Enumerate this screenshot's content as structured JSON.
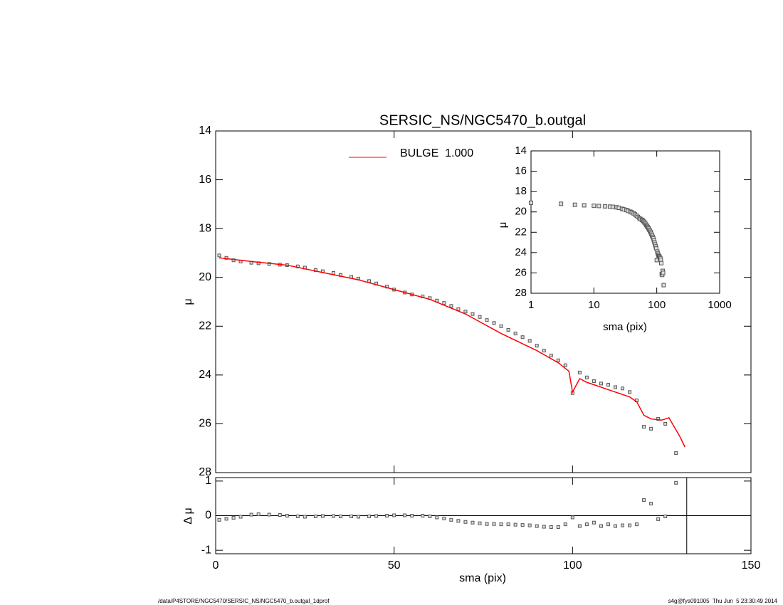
{
  "chart_data": [
    {
      "type": "scatter",
      "title": "SERSIC_NS/NGC5470_b.outgal",
      "ylabel": "μ",
      "xlim": [
        0,
        150
      ],
      "ylim": [
        28,
        14
      ],
      "xticks": [
        0,
        50,
        100,
        150
      ],
      "yticks": [
        14,
        16,
        18,
        20,
        22,
        24,
        26,
        28
      ],
      "series": [
        {
          "marker": "square",
          "color": "#555555",
          "x": [
            1,
            3,
            5,
            7,
            10,
            12,
            15,
            18,
            20,
            23,
            25,
            28,
            30,
            33,
            35,
            38,
            40,
            43,
            45,
            48,
            50,
            53,
            55,
            58,
            60,
            62,
            64,
            66,
            68,
            70,
            72,
            74,
            76,
            78,
            80,
            82,
            84,
            86,
            88,
            90,
            92,
            94,
            96,
            98,
            100,
            102,
            104,
            106,
            108,
            110,
            112,
            114,
            116,
            118,
            120,
            122,
            124,
            126,
            129
          ],
          "values": [
            19.1,
            19.2,
            19.3,
            19.35,
            19.4,
            19.42,
            19.45,
            19.48,
            19.5,
            19.55,
            19.6,
            19.7,
            19.75,
            19.82,
            19.9,
            19.98,
            20.05,
            20.15,
            20.25,
            20.38,
            20.5,
            20.62,
            20.7,
            20.78,
            20.85,
            20.95,
            21.05,
            21.17,
            21.3,
            21.4,
            21.5,
            21.62,
            21.75,
            21.87,
            22.0,
            22.15,
            22.3,
            22.45,
            22.6,
            22.8,
            23.0,
            23.2,
            23.4,
            23.6,
            24.74,
            23.9,
            24.1,
            24.25,
            24.35,
            24.4,
            24.5,
            24.55,
            24.7,
            25.04,
            26.12,
            26.2,
            25.8,
            26.0,
            27.2
          ]
        },
        {
          "name": "BULGE  1.000",
          "marker": "line",
          "color": "#ff0000",
          "x": [
            1,
            10,
            20,
            30,
            40,
            50,
            60,
            70,
            80,
            90,
            96,
            99,
            100,
            102,
            104,
            110,
            116,
            118,
            120,
            122,
            125,
            127,
            130,
            131.5
          ],
          "values": [
            19.2,
            19.35,
            19.5,
            19.8,
            20.1,
            20.5,
            20.9,
            21.5,
            22.3,
            23.0,
            23.5,
            23.85,
            24.7,
            24.15,
            24.3,
            24.6,
            24.9,
            25.1,
            25.65,
            25.8,
            25.85,
            25.75,
            26.5,
            26.95
          ]
        }
      ]
    },
    {
      "type": "scatter",
      "ylabel": "Δ μ",
      "xlabel": "sma (pix)",
      "xlim": [
        0,
        150
      ],
      "ylim": [
        -1.1,
        1.1
      ],
      "xticks": [
        0,
        50,
        100,
        150
      ],
      "yticks": [
        -1,
        0,
        1
      ],
      "vline": 132,
      "series": [
        {
          "marker": "square",
          "color": "#555555",
          "x": [
            1,
            3,
            5,
            7,
            10,
            12,
            15,
            18,
            20,
            23,
            25,
            28,
            30,
            33,
            35,
            38,
            40,
            43,
            45,
            48,
            50,
            53,
            55,
            58,
            60,
            62,
            64,
            66,
            68,
            70,
            72,
            74,
            76,
            78,
            80,
            82,
            84,
            86,
            88,
            90,
            92,
            94,
            96,
            98,
            100,
            102,
            104,
            106,
            108,
            110,
            112,
            114,
            116,
            118,
            120,
            122,
            124,
            126,
            129
          ],
          "values": [
            -0.12,
            -0.09,
            -0.06,
            -0.03,
            0.03,
            0.04,
            0.03,
            0.02,
            0.0,
            -0.02,
            -0.03,
            -0.02,
            -0.01,
            -0.01,
            -0.02,
            -0.02,
            -0.03,
            -0.02,
            -0.01,
            0.0,
            0.01,
            0.01,
            0.0,
            0.0,
            -0.02,
            -0.05,
            -0.08,
            -0.12,
            -0.15,
            -0.18,
            -0.2,
            -0.22,
            -0.24,
            -0.24,
            -0.25,
            -0.25,
            -0.26,
            -0.27,
            -0.28,
            -0.3,
            -0.32,
            -0.33,
            -0.33,
            -0.25,
            -0.05,
            -0.3,
            -0.25,
            -0.2,
            -0.3,
            -0.25,
            -0.3,
            -0.28,
            -0.28,
            -0.25,
            0.45,
            0.35,
            -0.1,
            -0.02,
            0.95
          ]
        }
      ]
    },
    {
      "type": "scatter",
      "ylabel": "μ",
      "xlabel": "sma (pix)",
      "log_x": true,
      "xlim": [
        1,
        1000
      ],
      "ylim": [
        28,
        14
      ],
      "xticks": [
        1,
        10,
        100,
        1000
      ],
      "yticks": [
        14,
        16,
        18,
        20,
        22,
        24,
        26,
        28
      ],
      "series": [
        {
          "marker": "square",
          "color": "#555555",
          "x": [
            1,
            3,
            5,
            7,
            10,
            12,
            15,
            18,
            20,
            23,
            25,
            28,
            30,
            33,
            35,
            38,
            40,
            43,
            45,
            48,
            50,
            53,
            55,
            58,
            60,
            62,
            64,
            66,
            68,
            70,
            72,
            74,
            76,
            78,
            80,
            82,
            84,
            86,
            88,
            90,
            92,
            94,
            96,
            98,
            100,
            102,
            104,
            106,
            108,
            110,
            112,
            114,
            116,
            118,
            120,
            122,
            124,
            126,
            129
          ],
          "values": [
            19.1,
            19.2,
            19.3,
            19.35,
            19.4,
            19.42,
            19.45,
            19.48,
            19.5,
            19.55,
            19.6,
            19.7,
            19.75,
            19.82,
            19.9,
            19.98,
            20.05,
            20.15,
            20.25,
            20.38,
            20.5,
            20.62,
            20.7,
            20.78,
            20.85,
            20.95,
            21.05,
            21.17,
            21.3,
            21.4,
            21.5,
            21.62,
            21.75,
            21.87,
            22.0,
            22.15,
            22.3,
            22.45,
            22.6,
            22.8,
            23.0,
            23.2,
            23.4,
            23.6,
            24.74,
            23.9,
            24.1,
            24.25,
            24.35,
            24.4,
            24.5,
            24.55,
            24.7,
            25.04,
            26.12,
            26.2,
            25.8,
            26.0,
            27.2
          ]
        }
      ]
    }
  ],
  "footer": {
    "left": "/data/P4STORE/NGC5470/SERSIC_NS/NGC5470_b.outgal_1dprof",
    "right": "s4g@fys091005  Thu Jun  5 23:30:49 2014"
  }
}
